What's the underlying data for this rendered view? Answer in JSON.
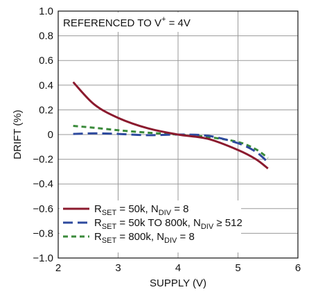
{
  "chart_data": {
    "type": "line",
    "title": "",
    "annotation": {
      "prefix": "REFERENCED TO V",
      "superscript": "+",
      "suffix": " = 4V"
    },
    "xlabel": "SUPPLY (V)",
    "ylabel": "DRIFT (%)",
    "xlim": [
      2,
      6
    ],
    "ylim": [
      -1.0,
      1.0
    ],
    "x_ticks": [
      2,
      3,
      4,
      5,
      6
    ],
    "x_tick_labels": [
      "2",
      "3",
      "4",
      "5",
      "6"
    ],
    "y_ticks": [
      1.0,
      0.8,
      0.6,
      0.4,
      0.2,
      0,
      -0.2,
      -0.4,
      -0.6,
      -0.8,
      -1.0
    ],
    "y_tick_labels": [
      "1.0",
      "0.8",
      "0.6",
      "0.4",
      "0.2",
      "0",
      "−0.2",
      "−0.4",
      "−0.6",
      "−0.8",
      "−1.0"
    ],
    "grid": true,
    "legend_position": "bottom-left",
    "series": [
      {
        "legend": {
          "r": "R",
          "r_sub": "SET",
          "mid": " = 50k, N",
          "n_sub": "DIV",
          "tail": " = 8"
        },
        "color": "#8b1a2e",
        "dash": "solid",
        "x": [
          2.25,
          2.6,
          3.0,
          3.5,
          4.0,
          4.5,
          5.0,
          5.3,
          5.5
        ],
        "y": [
          0.425,
          0.245,
          0.135,
          0.05,
          0.0,
          -0.035,
          -0.125,
          -0.2,
          -0.275
        ]
      },
      {
        "legend": {
          "r": "R",
          "r_sub": "SET",
          "mid": " = 50k TO 800k, N",
          "n_sub": "DIV",
          "tail": " ≥ 512"
        },
        "color": "#2e4a9e",
        "dash": "long-dash",
        "x": [
          2.25,
          2.6,
          3.0,
          3.5,
          4.0,
          4.5,
          5.0,
          5.3,
          5.5
        ],
        "y": [
          0.005,
          0.01,
          0.005,
          -0.005,
          0.0,
          -0.01,
          -0.07,
          -0.14,
          -0.225
        ]
      },
      {
        "legend": {
          "r": "R",
          "r_sub": "SET",
          "mid": " = 800k, N",
          "n_sub": "DIV",
          "tail": " = 8"
        },
        "color": "#3a8a3a",
        "dash": "short-dash",
        "x": [
          2.25,
          2.6,
          3.0,
          3.5,
          4.0,
          4.5,
          5.0,
          5.3,
          5.5
        ],
        "y": [
          0.07,
          0.055,
          0.035,
          0.015,
          0.0,
          -0.02,
          -0.06,
          -0.12,
          -0.19
        ]
      }
    ]
  }
}
